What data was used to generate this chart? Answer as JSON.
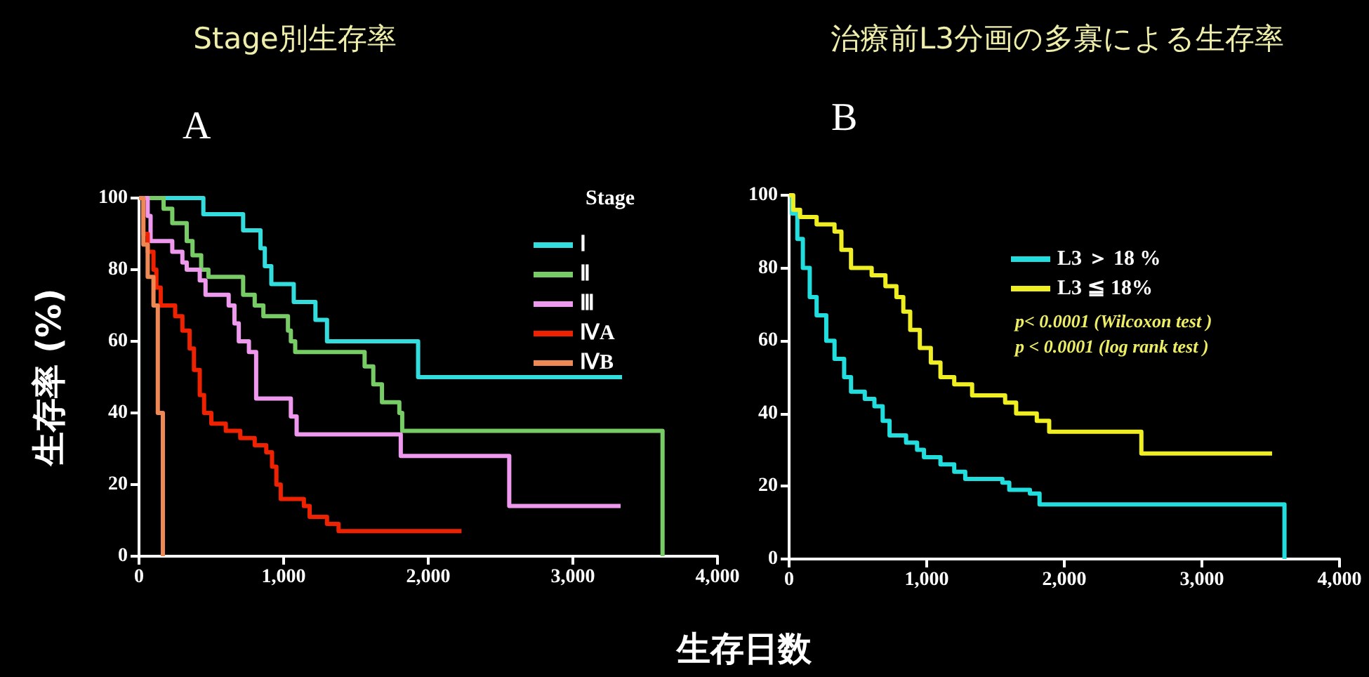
{
  "chart_data": [
    {
      "type": "step",
      "title": "Stage別生存率",
      "subtitle": "A",
      "xlabel": "生存日数",
      "ylabel": "生存率 (%)",
      "legend_title": "Stage",
      "legend": "top right",
      "grid": false,
      "xlim": [
        0,
        4000
      ],
      "xticks": [
        0,
        {
          "value": 1000,
          "label": "1,000"
        },
        {
          "value": 2000,
          "label": "2,000"
        },
        {
          "value": 3000,
          "label": "3,000"
        },
        {
          "value": 4000,
          "label": "4,000"
        }
      ],
      "ylim": [
        0,
        100
      ],
      "yticks": [
        0,
        20,
        40,
        60,
        80,
        100
      ],
      "series": [
        {
          "name": "Ⅰ",
          "color": "#33dddd",
          "x": [
            0,
            445,
            720,
            840,
            870,
            915,
            1070,
            1220,
            1300,
            1930,
            3340
          ],
          "values": [
            100,
            95.5,
            91,
            86,
            81,
            76,
            71,
            66,
            60,
            50,
            50
          ]
        },
        {
          "name": "Ⅱ",
          "color": "#77cc66",
          "x": [
            0,
            170,
            230,
            330,
            370,
            430,
            480,
            720,
            800,
            860,
            1030,
            1050,
            1080,
            1560,
            1620,
            1680,
            1800,
            1820,
            3620
          ],
          "values": [
            100,
            97,
            93,
            88,
            84,
            80,
            78,
            73,
            70,
            67,
            63,
            60,
            57,
            53,
            48,
            43,
            40,
            35,
            0
          ]
        },
        {
          "name": "Ⅲ",
          "color": "#ee99ee",
          "x": [
            0,
            60,
            80,
            230,
            300,
            330,
            420,
            460,
            620,
            660,
            690,
            760,
            810,
            1050,
            1090,
            1810,
            2560,
            3330
          ],
          "values": [
            100,
            95,
            88,
            85,
            82,
            80,
            77,
            73,
            70,
            65,
            60,
            57,
            44,
            39,
            34,
            28,
            14,
            14
          ]
        },
        {
          "name": "ⅣA",
          "color": "#ee2200",
          "x": [
            0,
            30,
            60,
            100,
            120,
            150,
            250,
            300,
            350,
            380,
            420,
            450,
            500,
            600,
            700,
            800,
            880,
            920,
            950,
            980,
            1140,
            1180,
            1300,
            1380,
            2230
          ],
          "values": [
            100,
            90,
            85,
            80,
            75,
            70,
            67,
            63,
            58,
            52,
            45,
            40,
            37,
            35,
            33,
            31,
            29,
            25,
            20,
            16,
            14,
            11,
            9,
            7,
            7
          ]
        },
        {
          "name": "ⅣB",
          "color": "#ee8855",
          "x": [
            0,
            30,
            60,
            100,
            130,
            165
          ],
          "values": [
            100,
            87,
            78,
            70,
            40,
            0
          ]
        }
      ]
    },
    {
      "type": "step",
      "title": "治療前L3分画の多寡による生存率",
      "subtitle": "B",
      "legend": "top right",
      "grid": false,
      "annotations": [
        "p< 0.0001 (Wilcoxon test )",
        "p < 0.0001 (log rank test )"
      ],
      "xlim": [
        0,
        4000
      ],
      "xticks": [
        0,
        {
          "value": 1000,
          "label": "1,000"
        },
        {
          "value": 2000,
          "label": "2,000"
        },
        {
          "value": 3000,
          "label": "3,000"
        },
        {
          "value": 4000,
          "label": "4,000"
        }
      ],
      "ylim": [
        0,
        100
      ],
      "yticks": [
        0,
        20,
        40,
        60,
        80,
        100
      ],
      "series": [
        {
          "name": "L3 ＞ 18 %",
          "color": "#22dddd",
          "x": [
            0,
            20,
            60,
            100,
            150,
            200,
            270,
            330,
            400,
            450,
            550,
            620,
            680,
            730,
            850,
            930,
            980,
            1100,
            1200,
            1280,
            1550,
            1600,
            1750,
            1820,
            3600
          ],
          "values": [
            100,
            95,
            88,
            80,
            72,
            67,
            60,
            55,
            50,
            46,
            44,
            42,
            38,
            34,
            32,
            30,
            28,
            26,
            24,
            22,
            21,
            19,
            18,
            15,
            0
          ]
        },
        {
          "name": "L3 ≦ 18%",
          "color": "#eeee22",
          "x": [
            0,
            30,
            80,
            200,
            330,
            380,
            450,
            600,
            700,
            780,
            830,
            880,
            950,
            1030,
            1100,
            1200,
            1330,
            1570,
            1650,
            1800,
            1890,
            2560,
            3510
          ],
          "values": [
            100,
            96,
            94,
            92,
            90,
            85,
            80,
            78,
            75,
            72,
            68,
            63,
            58,
            54,
            50,
            48,
            45,
            43,
            40,
            38,
            35,
            29,
            29
          ]
        }
      ]
    }
  ]
}
